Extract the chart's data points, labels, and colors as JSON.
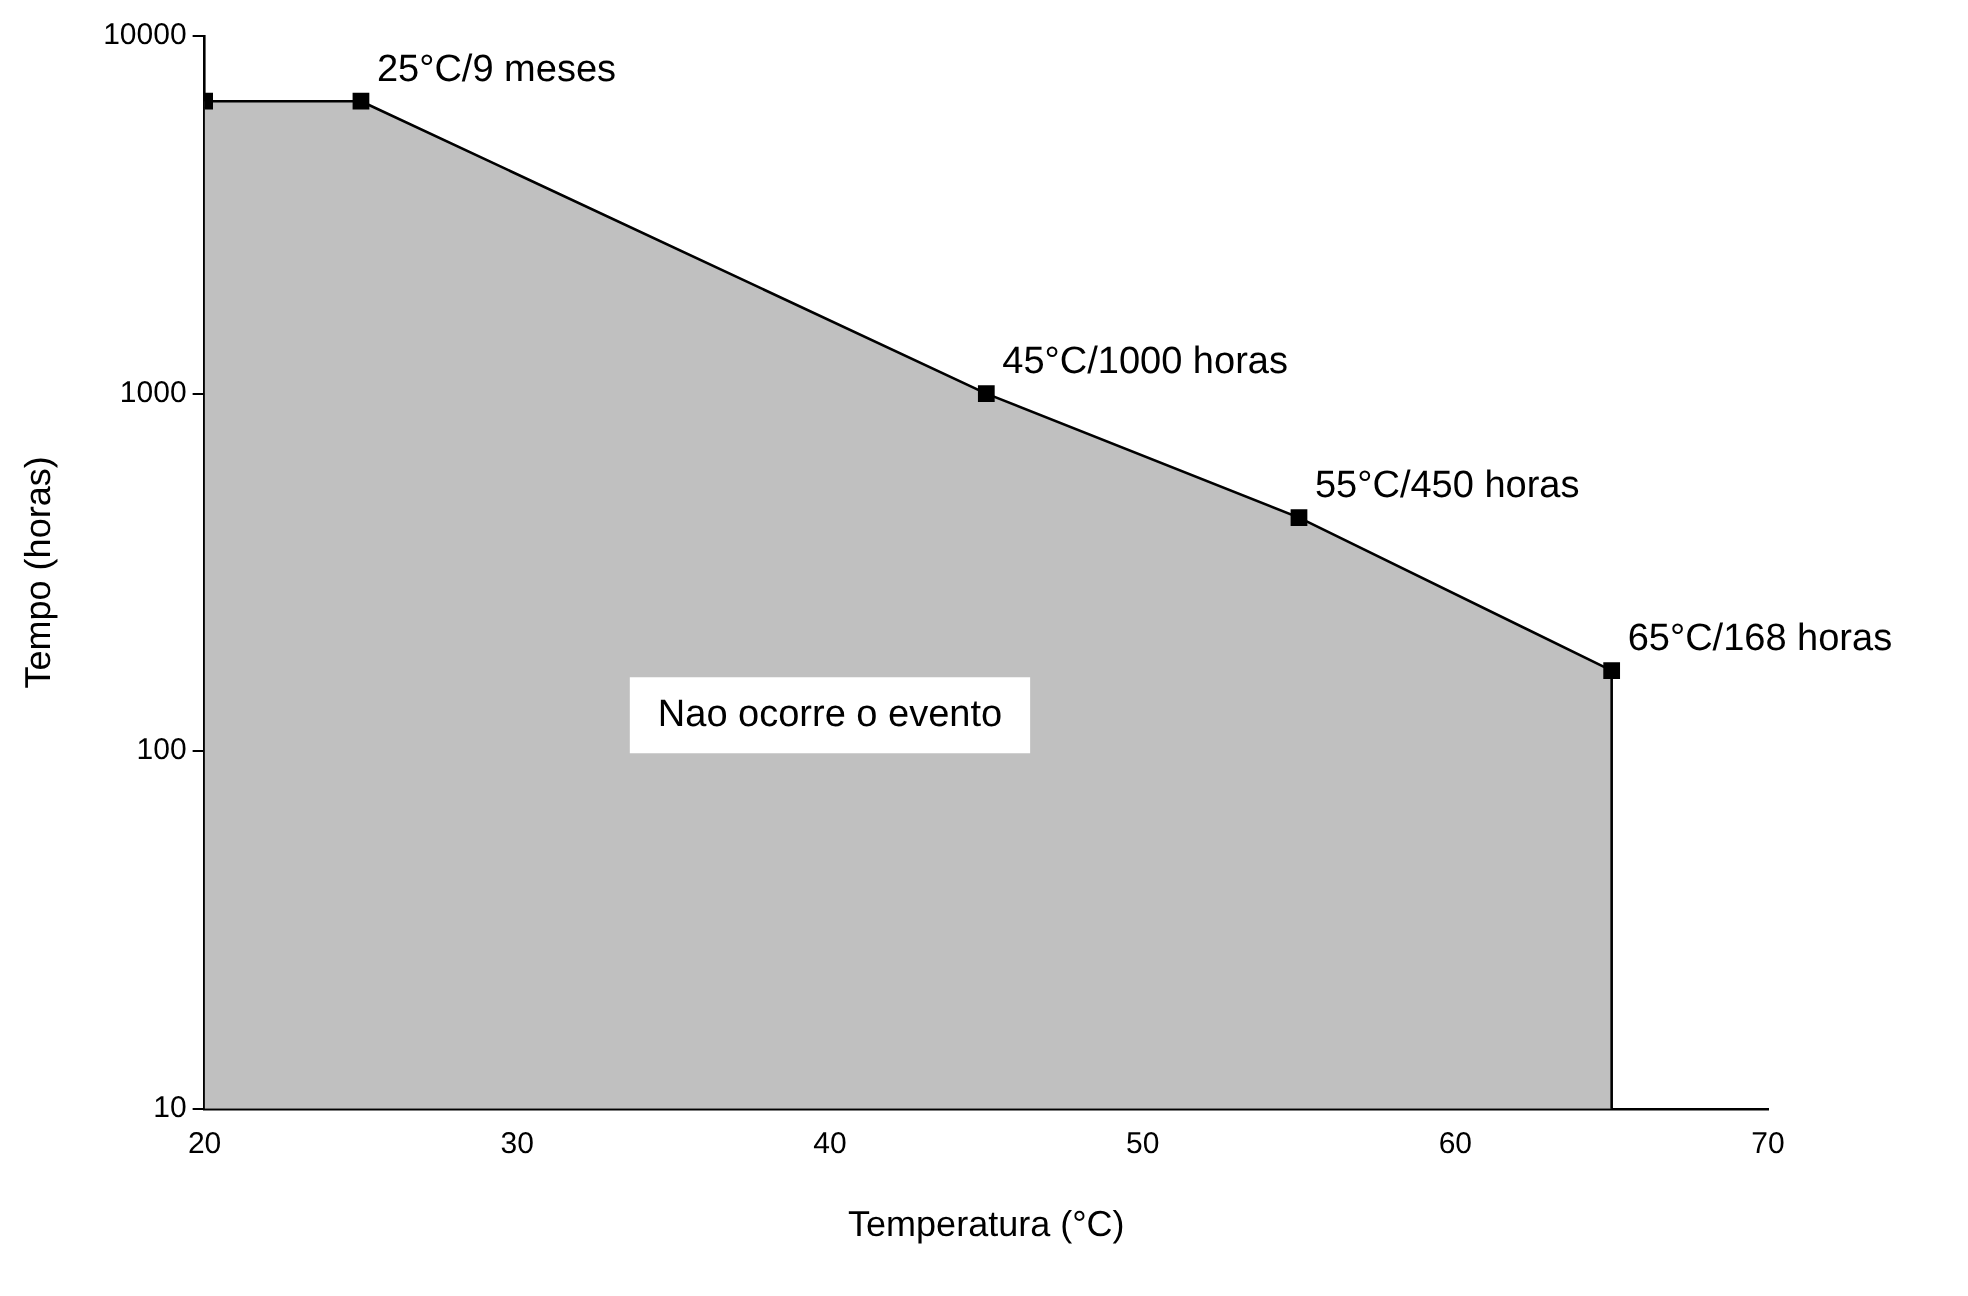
{
  "chart_data": {
    "type": "area",
    "xlabel": "Temperatura (°C)",
    "ylabel": "Tempo (horas)",
    "x": [
      20,
      25,
      45,
      55,
      65
    ],
    "series": [
      {
        "color": "#c0c0c0",
        "values": [
          6570,
          6570,
          1000,
          450,
          168
        ]
      }
    ],
    "xlim": [
      20,
      70
    ],
    "xticks": [
      20,
      30,
      40,
      50,
      60,
      70
    ],
    "ylim": [
      10,
      10000
    ],
    "yticks": [
      10,
      100,
      1000,
      10000
    ],
    "log": "y",
    "grid": false,
    "legend": false,
    "marker": "square",
    "line_style": "solid",
    "annotations": [
      {
        "text": "25°C/9 meses",
        "x": 25,
        "y": 6570
      },
      {
        "text": "45°C/1000 horas",
        "x": 45,
        "y": 1000
      },
      {
        "text": "55°C/450 horas",
        "x": 55,
        "y": 450
      },
      {
        "text": "65°C/168 horas",
        "x": 65,
        "y": 168
      },
      "Nao ocorre o evento"
    ]
  }
}
